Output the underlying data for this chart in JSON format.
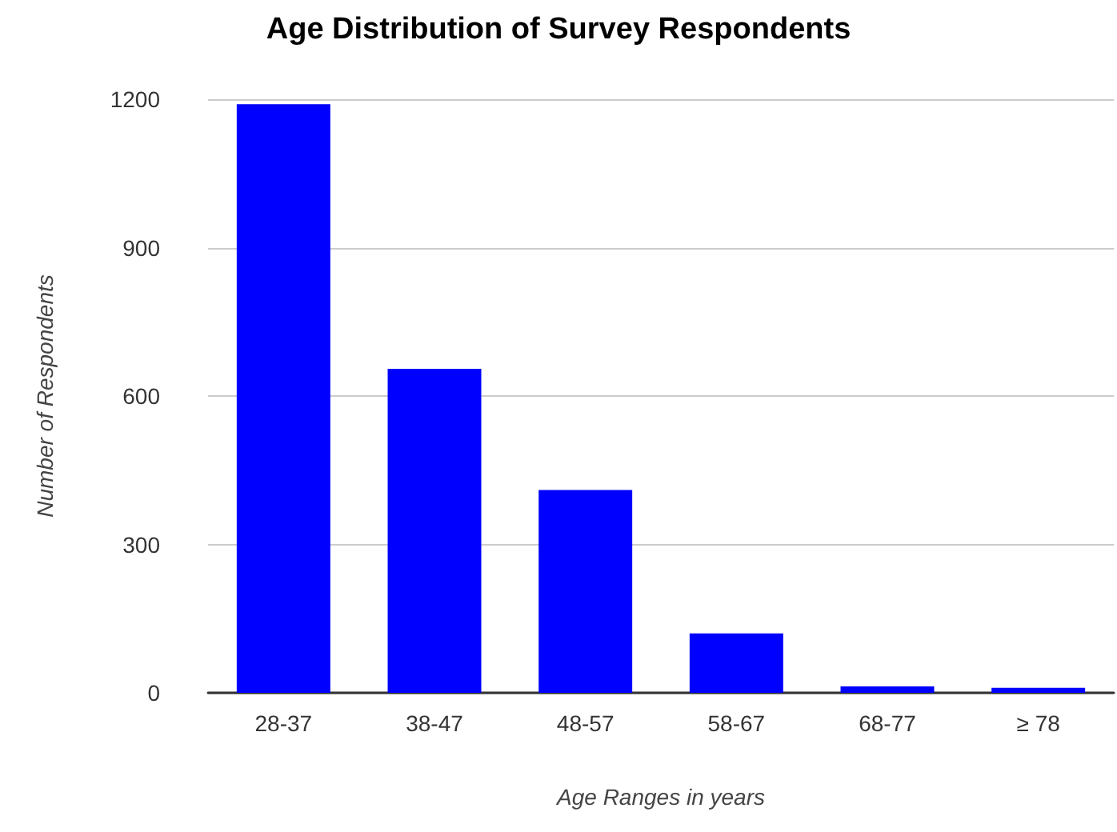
{
  "chart_data": {
    "type": "bar",
    "title": "Age Distribution of Survey Respondents",
    "xlabel": "Age Ranges in years",
    "ylabel": "Number of Respondents",
    "categories": [
      "28-37",
      "38-47",
      "48-57",
      "58-67",
      "68-77",
      "≥ 78"
    ],
    "values": [
      1190,
      655,
      410,
      120,
      13,
      10
    ],
    "color": "#0000ff",
    "ylim": [
      0,
      1200
    ],
    "yticks": [
      0,
      300,
      600,
      900,
      1200
    ],
    "grid": "y"
  }
}
